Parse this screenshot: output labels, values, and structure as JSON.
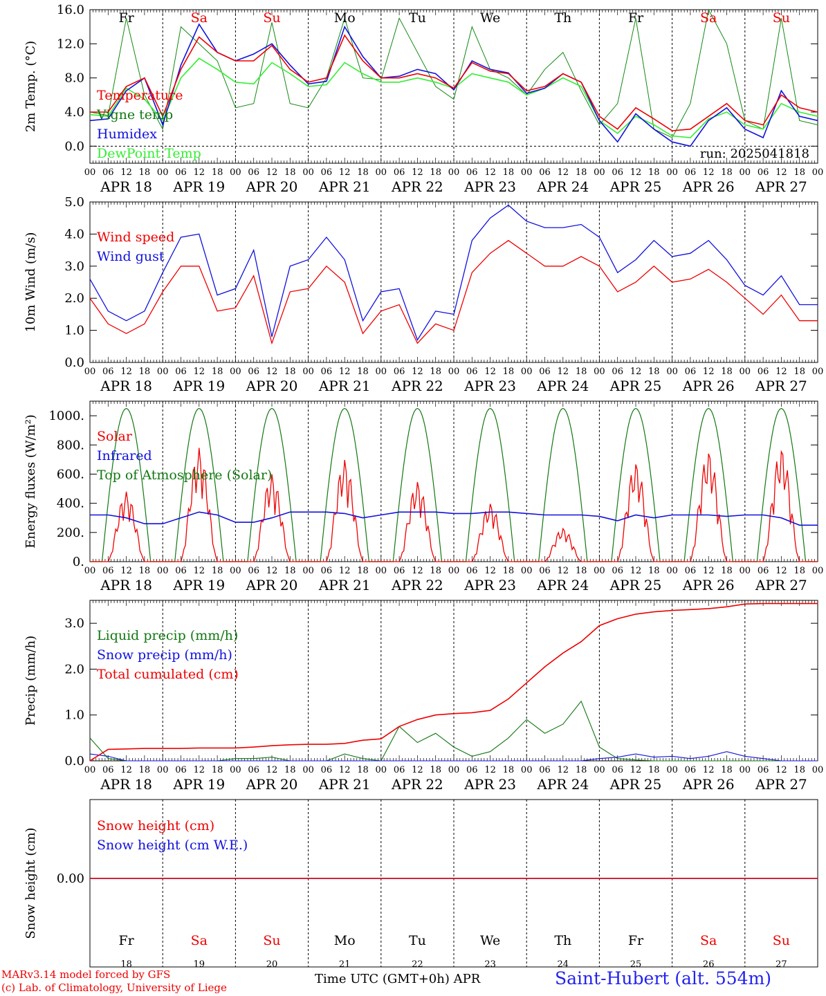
{
  "colors": {
    "red": "#ee0000",
    "blue": "#1111dd",
    "green": "#118811",
    "lightgreen": "#33ee33",
    "darkgreen": "#117711",
    "black": "#000000"
  },
  "day_labels": [
    {
      "day": "Fr",
      "color": "black"
    },
    {
      "day": "Sa",
      "color": "red"
    },
    {
      "day": "Su",
      "color": "red"
    },
    {
      "day": "Mo",
      "color": "black"
    },
    {
      "day": "Tu",
      "color": "black"
    },
    {
      "day": "We",
      "color": "black"
    },
    {
      "day": "Th",
      "color": "black"
    },
    {
      "day": "Fr",
      "color": "black"
    },
    {
      "day": "Sa",
      "color": "red"
    },
    {
      "day": "Su",
      "color": "red"
    }
  ],
  "date_labels": [
    "APR 18",
    "APR 19",
    "APR 20",
    "APR 21",
    "APR 22",
    "APR 23",
    "APR 24",
    "APR 25",
    "APR 26",
    "APR 27"
  ],
  "bottom_day_numbers": [
    "18",
    "19",
    "20",
    "21",
    "22",
    "23",
    "24",
    "25",
    "26",
    "27"
  ],
  "hour_ticks": [
    "00",
    "06",
    "12",
    "18"
  ],
  "final_tick": "00",
  "run_label": "run: 2025041818",
  "footer": {
    "model": "MARv3.14 model forced by GFS",
    "lab": "(c) Lab. of Climatology, University of Liege",
    "axis_title": "Time UTC (GMT+0h) APR",
    "station": "Saint-Hubert (alt. 554m)"
  },
  "chart_data": [
    {
      "type": "line",
      "ylabel": "2m Temp. (°C)",
      "ylim": [
        -2,
        16
      ],
      "yticks": [
        "0.0",
        "4.0",
        "8.0",
        "12.0",
        "16.0"
      ],
      "legend": [
        "Temperature",
        "Vigne temp",
        "Humidex",
        "DewPoint Temp"
      ],
      "x_hours": [
        0,
        6,
        12,
        18,
        24,
        30,
        36,
        42,
        48,
        54,
        60,
        66,
        72,
        78,
        84,
        90,
        96,
        102,
        108,
        114,
        120,
        126,
        132,
        138,
        144,
        150,
        156,
        162,
        168,
        174,
        180,
        186,
        192,
        198,
        204,
        210,
        216,
        222,
        228,
        234
      ],
      "series": [
        {
          "name": "Temperature",
          "color": "red",
          "values": [
            4.0,
            4.0,
            7.0,
            8.0,
            3.5,
            9.0,
            12.8,
            11.0,
            10.0,
            10.0,
            11.8,
            9.0,
            7.5,
            8.0,
            13.0,
            10.0,
            8.0,
            8.0,
            8.5,
            8.0,
            6.8,
            9.8,
            8.8,
            8.5,
            6.5,
            7.0,
            8.5,
            7.5,
            3.5,
            2.0,
            4.5,
            3.2,
            1.8,
            2.0,
            3.5,
            5.0,
            3.0,
            2.5,
            6.0,
            4.5
          ]
        },
        {
          "name": "Vigne temp",
          "color": "green",
          "values": [
            4.0,
            3.6,
            15.0,
            6.0,
            2.0,
            14.0,
            12.0,
            10.0,
            4.5,
            5.0,
            14.5,
            5.0,
            4.5,
            8.0,
            15.0,
            8.0,
            7.8,
            15.0,
            11.0,
            7.0,
            5.5,
            14.0,
            9.0,
            8.0,
            6.0,
            9.0,
            11.0,
            6.5,
            2.5,
            5.0,
            15.0,
            2.0,
            1.0,
            5.0,
            16.0,
            12.0,
            3.0,
            2.0,
            15.0,
            3.0
          ]
        },
        {
          "name": "Humidex",
          "color": "blue",
          "values": [
            3.0,
            3.2,
            6.5,
            8.0,
            2.5,
            9.5,
            14.3,
            11.0,
            10.0,
            10.8,
            12.0,
            9.5,
            7.3,
            7.6,
            14.0,
            10.5,
            8.0,
            8.2,
            9.0,
            8.5,
            6.6,
            10.0,
            9.0,
            8.6,
            6.2,
            6.8,
            8.5,
            7.5,
            3.0,
            0.5,
            3.8,
            2.0,
            0.5,
            0.0,
            3.0,
            4.5,
            2.0,
            1.0,
            6.5,
            3.5
          ]
        },
        {
          "name": "DewPoint Temp",
          "color": "lightgreen",
          "values": [
            3.7,
            3.5,
            6.8,
            5.5,
            3.0,
            8.0,
            10.3,
            9.0,
            7.5,
            7.3,
            9.8,
            8.5,
            7.0,
            7.2,
            9.8,
            8.5,
            7.5,
            7.5,
            8.0,
            7.5,
            6.8,
            8.5,
            8.0,
            7.5,
            6.0,
            6.8,
            8.0,
            7.0,
            3.0,
            1.5,
            3.5,
            2.5,
            1.2,
            1.0,
            3.2,
            4.0,
            2.5,
            2.0,
            5.0,
            4.0
          ]
        }
      ]
    },
    {
      "type": "line",
      "ylabel": "10m Wind (m/s)",
      "ylim": [
        0,
        5
      ],
      "yticks": [
        "0.0",
        "1.0",
        "2.0",
        "3.0",
        "4.0",
        "5.0"
      ],
      "legend": [
        "Wind speed",
        "Wind gust"
      ],
      "x_hours": [
        0,
        6,
        12,
        18,
        24,
        30,
        36,
        42,
        48,
        54,
        60,
        66,
        72,
        78,
        84,
        90,
        96,
        102,
        108,
        114,
        120,
        126,
        132,
        138,
        144,
        150,
        156,
        162,
        168,
        174,
        180,
        186,
        192,
        198,
        204,
        210,
        216,
        222,
        228,
        234
      ],
      "series": [
        {
          "name": "Wind speed",
          "color": "red",
          "values": [
            2.0,
            1.2,
            0.9,
            1.2,
            2.2,
            3.0,
            3.0,
            1.6,
            1.7,
            2.7,
            0.6,
            2.2,
            2.3,
            3.0,
            2.5,
            0.9,
            1.6,
            1.8,
            0.6,
            1.2,
            1.0,
            2.8,
            3.4,
            3.8,
            3.4,
            3.0,
            3.0,
            3.3,
            3.0,
            2.2,
            2.5,
            3.0,
            2.5,
            2.6,
            2.9,
            2.5,
            2.0,
            1.5,
            2.1,
            1.3
          ]
        },
        {
          "name": "Wind gust",
          "color": "blue",
          "values": [
            2.6,
            1.6,
            1.3,
            1.6,
            2.8,
            3.9,
            4.0,
            2.1,
            2.3,
            3.5,
            0.8,
            3.0,
            3.2,
            3.9,
            3.2,
            1.3,
            2.2,
            2.3,
            0.7,
            1.6,
            1.5,
            3.8,
            4.5,
            4.9,
            4.4,
            4.2,
            4.2,
            4.3,
            3.9,
            2.8,
            3.2,
            3.8,
            3.3,
            3.4,
            3.8,
            3.2,
            2.4,
            2.1,
            2.7,
            1.8
          ]
        }
      ]
    },
    {
      "type": "line",
      "ylabel": "Energy fluxes (W/m²)",
      "ylim": [
        0,
        1100
      ],
      "yticks": [
        "0.",
        "200.",
        "400.",
        "600.",
        "800.",
        "1000."
      ],
      "legend": [
        "Solar",
        "Infrared",
        "Top of Atmosphere (Solar)"
      ],
      "toa_peak": 1050,
      "solar_daily_peaks": [
        480,
        780,
        600,
        700,
        550,
        400,
        230,
        680,
        760,
        780
      ],
      "infrared_values": [
        320,
        320,
        300,
        260,
        260,
        300,
        340,
        320,
        270,
        270,
        300,
        340,
        340,
        340,
        330,
        300,
        320,
        340,
        340,
        340,
        330,
        330,
        340,
        340,
        330,
        320,
        320,
        320,
        310,
        280,
        320,
        300,
        320,
        320,
        320,
        310,
        320,
        320,
        300,
        250
      ],
      "x_hours": [
        0,
        6,
        12,
        18,
        24,
        30,
        36,
        42,
        48,
        54,
        60,
        66,
        72,
        78,
        84,
        90,
        96,
        102,
        108,
        114,
        120,
        126,
        132,
        138,
        144,
        150,
        156,
        162,
        168,
        174,
        180,
        186,
        192,
        198,
        204,
        210,
        216,
        222,
        228,
        234
      ]
    },
    {
      "type": "line",
      "ylabel": "Precip (mm/h)",
      "ylim": [
        0,
        3.5
      ],
      "yticks": [
        "0.0",
        "1.0",
        "2.0",
        "3.0"
      ],
      "legend": [
        "Liquid precip (mm/h)",
        "Snow precip (mm/h)",
        "Total cumulated (cm)"
      ],
      "x_hours": [
        0,
        6,
        12,
        18,
        24,
        30,
        36,
        42,
        48,
        54,
        60,
        66,
        72,
        78,
        84,
        90,
        96,
        102,
        108,
        114,
        120,
        126,
        132,
        138,
        144,
        150,
        156,
        162,
        168,
        174,
        180,
        186,
        192,
        198,
        204,
        210,
        216,
        222,
        228,
        234,
        240
      ],
      "series": [
        {
          "name": "Total cumulated (cm)",
          "color": "red",
          "values": [
            0.0,
            0.25,
            0.26,
            0.27,
            0.27,
            0.27,
            0.28,
            0.28,
            0.28,
            0.3,
            0.33,
            0.35,
            0.36,
            0.36,
            0.38,
            0.45,
            0.48,
            0.75,
            0.9,
            1.0,
            1.03,
            1.05,
            1.1,
            1.35,
            1.7,
            2.05,
            2.35,
            2.6,
            2.95,
            3.1,
            3.2,
            3.25,
            3.28,
            3.3,
            3.32,
            3.36,
            3.42,
            3.43,
            3.43,
            3.43,
            3.43
          ]
        },
        {
          "name": "Liquid precip (mm/h)",
          "color": "green",
          "values": [
            0.5,
            0.05,
            0.0,
            0.0,
            0.0,
            0.0,
            0.0,
            0.0,
            0.05,
            0.05,
            0.08,
            0.0,
            0.0,
            0.0,
            0.15,
            0.05,
            0.0,
            0.75,
            0.4,
            0.6,
            0.3,
            0.1,
            0.2,
            0.5,
            0.9,
            0.6,
            0.8,
            1.3,
            0.3,
            0.05,
            0.02,
            0.0,
            0.0,
            0.0,
            0.0,
            0.0,
            0.0,
            0.0,
            0.0,
            0.0,
            0.0
          ]
        },
        {
          "name": "Snow precip (mm/h)",
          "color": "blue",
          "values": [
            0.15,
            0.1,
            0.0,
            0.0,
            0.0,
            0.0,
            0.0,
            0.0,
            0.0,
            0.0,
            0.0,
            0.0,
            0.0,
            0.0,
            0.0,
            0.0,
            0.0,
            0.0,
            0.0,
            0.0,
            0.0,
            0.0,
            0.0,
            0.0,
            0.0,
            0.0,
            0.0,
            0.0,
            0.05,
            0.08,
            0.15,
            0.08,
            0.1,
            0.05,
            0.1,
            0.2,
            0.1,
            0.05,
            0.0,
            0.0,
            0.0
          ]
        }
      ]
    },
    {
      "type": "line",
      "ylabel": "Snow height (cm)",
      "yticks": [
        "0.00"
      ],
      "legend": [
        "Snow height (cm)",
        "Snow height (cm W.E.)"
      ],
      "series": [
        {
          "name": "Snow height (cm)",
          "color": "red",
          "values": [
            0,
            0
          ]
        },
        {
          "name": "Snow height (cm W.E.)",
          "color": "blue",
          "values": [
            0,
            0
          ]
        }
      ]
    }
  ]
}
